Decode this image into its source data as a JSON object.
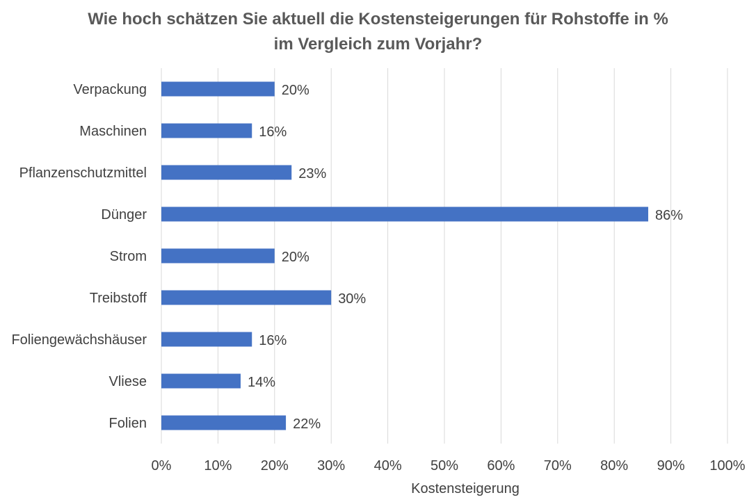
{
  "chart_data": {
    "type": "bar",
    "orientation": "horizontal",
    "title_lines": [
      "Wie hoch schätzen Sie aktuell die Kostensteigerungen für Rohstoffe in %",
      "im Vergleich zum Vorjahr?"
    ],
    "xlabel": "Kostensteigerung",
    "ylabel": "",
    "categories": [
      "Verpackung",
      "Maschinen",
      "Pflanzenschutzmittel",
      "Dünger",
      "Strom",
      "Treibstoff",
      "Foliengewächshäuser",
      "Vliese",
      "Folien"
    ],
    "values": [
      20,
      16,
      23,
      86,
      20,
      30,
      16,
      14,
      22
    ],
    "data_labels": [
      "20%",
      "16%",
      "23%",
      "86%",
      "20%",
      "30%",
      "16%",
      "14%",
      "22%"
    ],
    "xlim": [
      0,
      100
    ],
    "xticks": [
      0,
      10,
      20,
      30,
      40,
      50,
      60,
      70,
      80,
      90,
      100
    ],
    "xtick_labels": [
      "0%",
      "10%",
      "20%",
      "30%",
      "40%",
      "50%",
      "60%",
      "70%",
      "80%",
      "90%",
      "100%"
    ],
    "grid": "vertical",
    "legend": "none",
    "bar_color": "#4472C4",
    "grid_color": "#D9D9D9"
  }
}
